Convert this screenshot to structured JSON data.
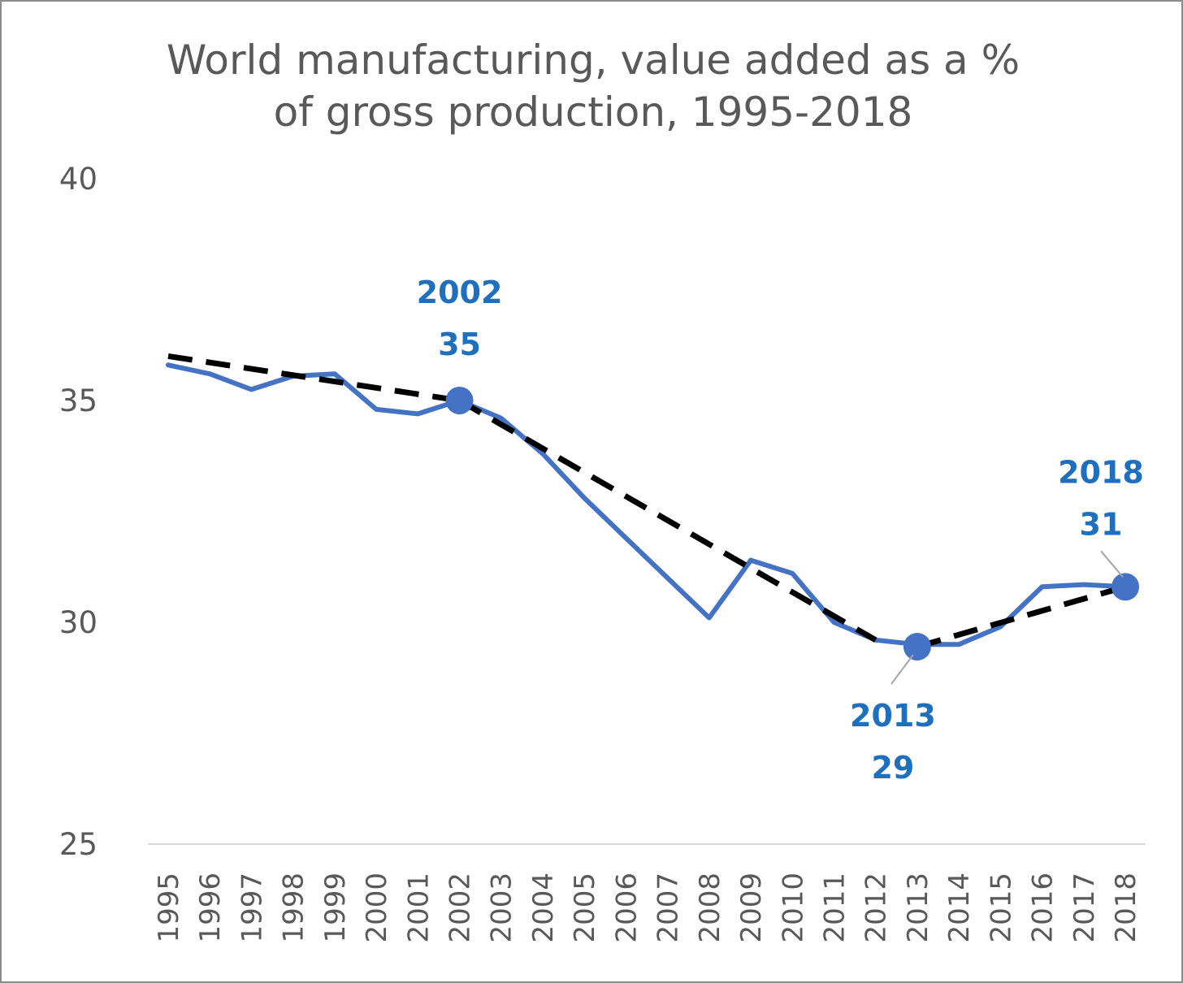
{
  "chart_data": {
    "type": "line",
    "title_lines": [
      "World manufacturing, value added as a %",
      "of gross production, 1995-2018"
    ],
    "xlabel": "",
    "ylabel": "",
    "ylim": [
      25,
      40
    ],
    "yticks": [
      "25",
      "30",
      "35",
      "40"
    ],
    "categories": [
      "1995",
      "1996",
      "1997",
      "1998",
      "1999",
      "2000",
      "2001",
      "2002",
      "2003",
      "2004",
      "2005",
      "2006",
      "2007",
      "2008",
      "2009",
      "2010",
      "2011",
      "2012",
      "2013",
      "2014",
      "2015",
      "2016",
      "2017",
      "2018"
    ],
    "grid": false,
    "series": [
      {
        "style": "solid",
        "color": "#4472c4",
        "values": [
          35.8,
          35.6,
          35.25,
          35.55,
          35.6,
          34.8,
          34.7,
          35.0,
          34.6,
          33.8,
          32.8,
          31.9,
          31.0,
          30.1,
          31.4,
          31.1,
          30.0,
          29.6,
          29.5,
          29.5,
          29.9,
          30.8,
          30.85,
          30.8
        ]
      },
      {
        "style": "dashed",
        "color": "#000000",
        "segments": [
          {
            "from": "1995",
            "to": "2002",
            "values": [
              36.0,
              35.0
            ]
          },
          {
            "from": "2002",
            "to": "2012",
            "values": [
              35.0,
              29.6
            ]
          },
          {
            "from": "2013",
            "to": "2018",
            "values": [
              29.45,
              30.8
            ]
          }
        ]
      }
    ],
    "annotations": [
      {
        "x": "2002",
        "value": 35.0,
        "label_year": "2002",
        "label_value": "35",
        "position": "above"
      },
      {
        "x": "2013",
        "value": 29.45,
        "label_year": "2013",
        "label_value": "29",
        "position": "below"
      },
      {
        "x": "2018",
        "value": 30.8,
        "label_year": "2018",
        "label_value": "31",
        "position": "above"
      }
    ]
  }
}
